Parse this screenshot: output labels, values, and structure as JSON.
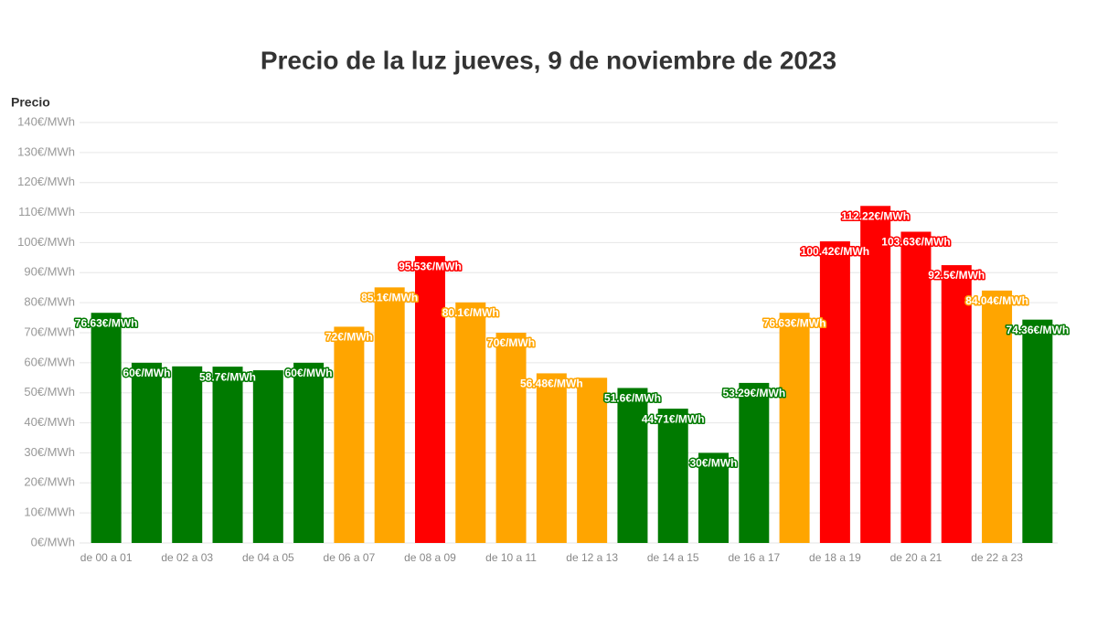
{
  "chart_data": {
    "type": "bar",
    "title": "Precio de la luz jueves, 9 de noviembre de 2023",
    "y_label": "Precio",
    "categories": [
      "de 00 a 01",
      null,
      "de 02 a 03",
      null,
      "de 04 a 05",
      null,
      "de 06 a 07",
      null,
      "de 08 a 09",
      null,
      "de 10 a 11",
      null,
      "de 12 a 13",
      null,
      "de 14 a 15",
      null,
      "de 16 a 17",
      null,
      "de 18 a 19",
      null,
      "de 20 a 21",
      null,
      "de 22 a 23",
      null
    ],
    "values": [
      76.63,
      60,
      58.8,
      58.7,
      57.5,
      60,
      72,
      85.1,
      95.53,
      80.1,
      70,
      56.48,
      55,
      51.6,
      44.71,
      30,
      53.29,
      76.63,
      100.42,
      112.22,
      103.63,
      92.5,
      84.04,
      74.36
    ],
    "value_labels": [
      "76.63€/MWh",
      "60€/MWh",
      null,
      "58.7€/MWh",
      null,
      "60€/MWh",
      "72€/MWh",
      "85.1€/MWh",
      "95.53€/MWh",
      "80.1€/MWh",
      "70€/MWh",
      "56.48€/MWh",
      null,
      "51.6€/MWh",
      "44.71€/MWh",
      "30€/MWh",
      "53.29€/MWh",
      "76.63€/MWh",
      "100.42€/MWh",
      "112.22€/MWh",
      "103.63€/MWh",
      "92.5€/MWh",
      "84.04€/MWh",
      "74.36€/MWh"
    ],
    "colors": [
      "#007a00",
      "#007a00",
      "#007a00",
      "#007a00",
      "#007a00",
      "#007a00",
      "#ffa500",
      "#ffa500",
      "#ff0000",
      "#ffa500",
      "#ffa500",
      "#ffa500",
      "#ffa500",
      "#007a00",
      "#007a00",
      "#007a00",
      "#007a00",
      "#ffa500",
      "#ff0000",
      "#ff0000",
      "#ff0000",
      "#ff0000",
      "#ffa500",
      "#007a00"
    ],
    "ylim": [
      0,
      140
    ],
    "yticks": [
      {
        "value": 0,
        "label": "0€/MWh"
      },
      {
        "value": 10,
        "label": "10€/MWh"
      },
      {
        "value": 20,
        "label": "20€/MWh"
      },
      {
        "value": 30,
        "label": "30€/MWh"
      },
      {
        "value": 40,
        "label": "40€/MWh"
      },
      {
        "value": 50,
        "label": "50€/MWh"
      },
      {
        "value": 60,
        "label": "60€/MWh"
      },
      {
        "value": 70,
        "label": "70€/MWh"
      },
      {
        "value": 80,
        "label": "80€/MWh"
      },
      {
        "value": 90,
        "label": "90€/MWh"
      },
      {
        "value": 100,
        "label": "100€/MWh"
      },
      {
        "value": 110,
        "label": "110€/MWh"
      },
      {
        "value": 120,
        "label": "120€/MWh"
      },
      {
        "value": 130,
        "label": "130€/MWh"
      },
      {
        "value": 140,
        "label": "140€/MWh"
      }
    ],
    "grid": true
  }
}
